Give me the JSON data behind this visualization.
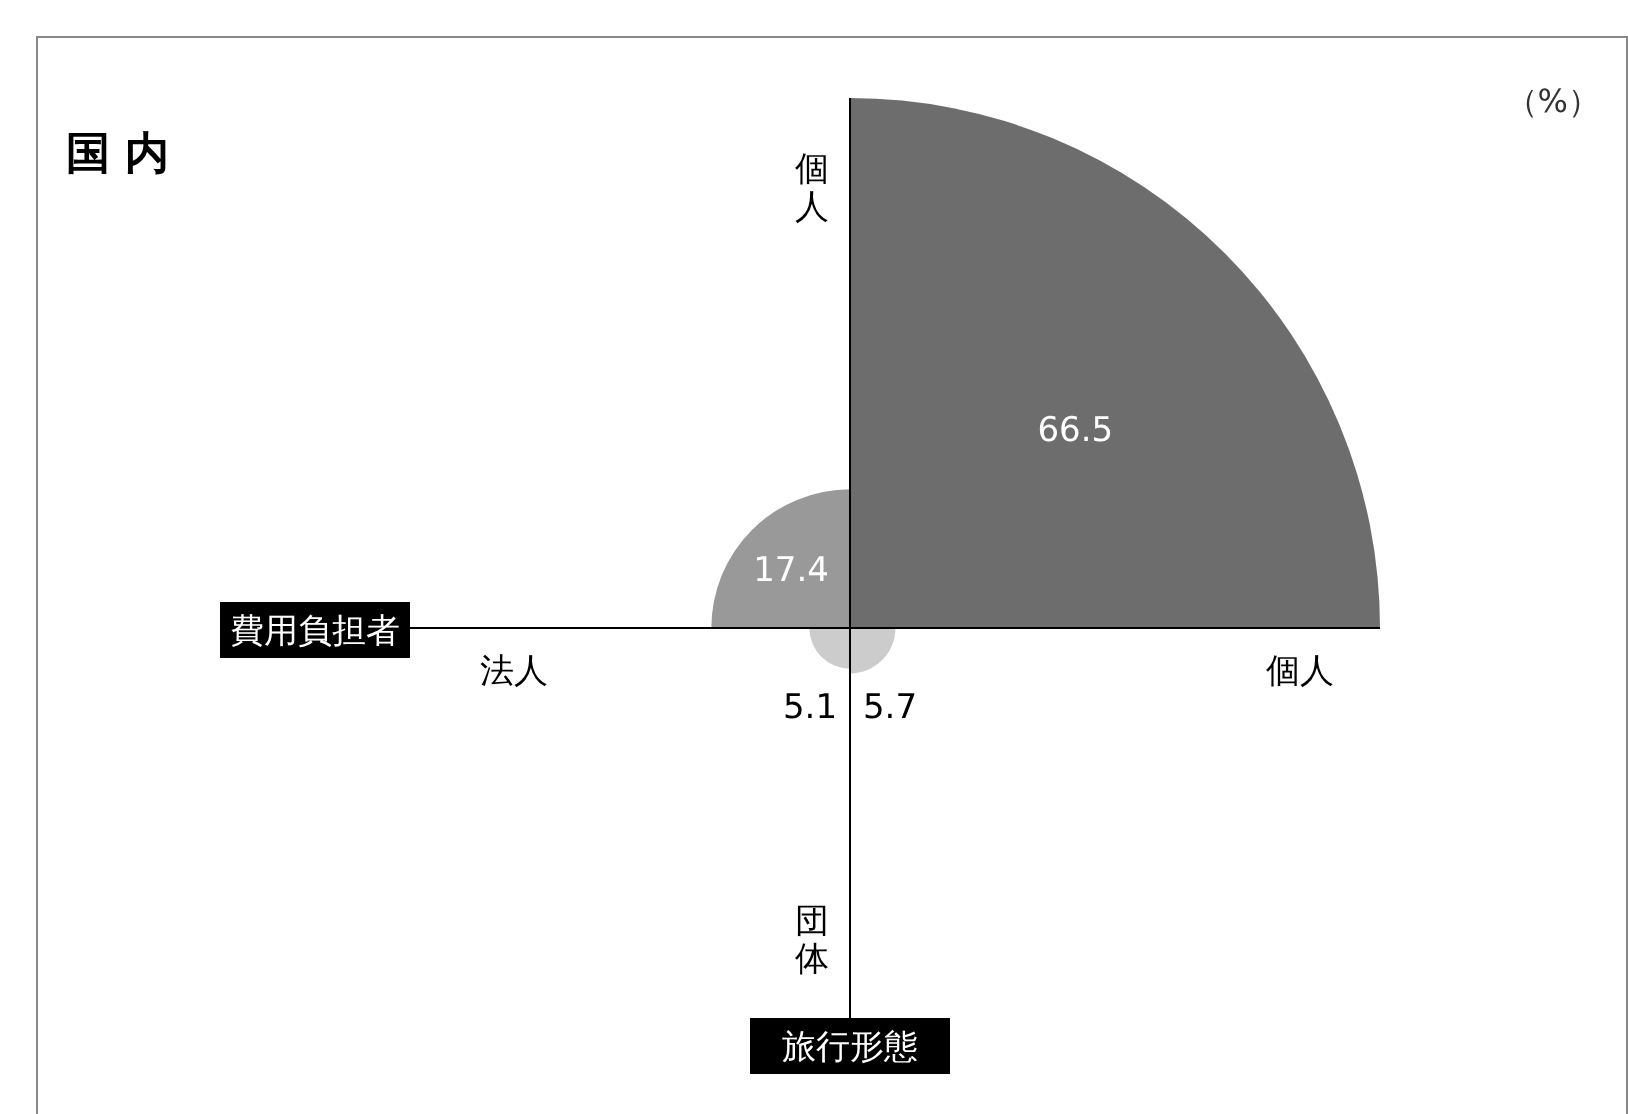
{
  "chart_data": {
    "type": "other",
    "title": "国 内",
    "xlabel": "費用負担者",
    "ylabel": "旅行形態",
    "annotations": [
      "（%）",
      "法人",
      "個人",
      "個人",
      "団体"
    ],
    "categories": [
      null,
      null,
      null,
      null
    ],
    "values": [
      66.5,
      17.4,
      5.1,
      5.7
    ],
    "colors": [
      "#6d6d6d",
      "#999999",
      "#cccccc",
      "#cccccc"
    ],
    "data_labels": true
  }
}
